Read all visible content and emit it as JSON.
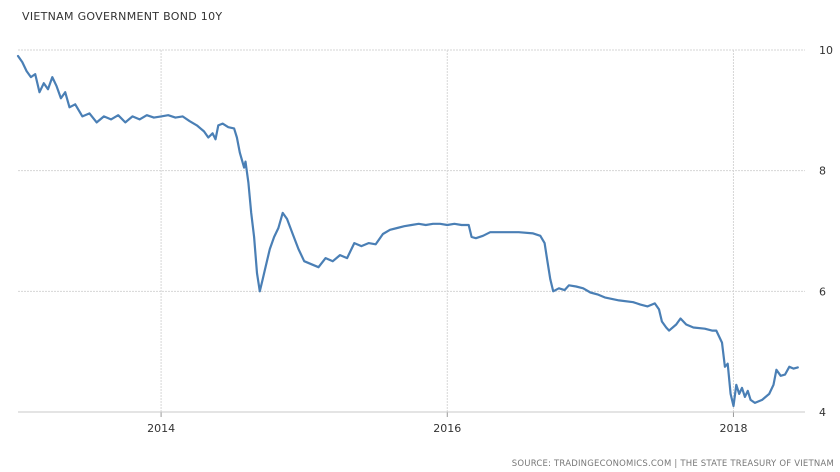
{
  "chart_data": {
    "type": "line",
    "title": "VIETNAM GOVERNMENT BOND 10Y",
    "source": "SOURCE: TRADINGECONOMICS.COM | THE STATE TREASURY OF VIETNAM",
    "xlabel": "",
    "ylabel": "",
    "xlim": [
      2013.0,
      2018.5
    ],
    "ylim": [
      4,
      10
    ],
    "x_ticks": [
      2014,
      2016,
      2018
    ],
    "y_ticks": [
      4,
      6,
      8,
      10
    ],
    "grid": true,
    "line_color": "#4a7fb5",
    "series": [
      {
        "points": [
          [
            2013.0,
            9.9
          ],
          [
            2013.03,
            9.8
          ],
          [
            2013.06,
            9.65
          ],
          [
            2013.09,
            9.55
          ],
          [
            2013.12,
            9.6
          ],
          [
            2013.15,
            9.3
          ],
          [
            2013.18,
            9.45
          ],
          [
            2013.21,
            9.35
          ],
          [
            2013.24,
            9.55
          ],
          [
            2013.27,
            9.4
          ],
          [
            2013.3,
            9.2
          ],
          [
            2013.33,
            9.3
          ],
          [
            2013.36,
            9.05
          ],
          [
            2013.4,
            9.1
          ],
          [
            2013.45,
            8.9
          ],
          [
            2013.5,
            8.95
          ],
          [
            2013.55,
            8.8
          ],
          [
            2013.6,
            8.9
          ],
          [
            2013.65,
            8.85
          ],
          [
            2013.7,
            8.92
          ],
          [
            2013.75,
            8.8
          ],
          [
            2013.8,
            8.9
          ],
          [
            2013.85,
            8.85
          ],
          [
            2013.9,
            8.92
          ],
          [
            2013.95,
            8.88
          ],
          [
            2014.0,
            8.9
          ],
          [
            2014.05,
            8.92
          ],
          [
            2014.1,
            8.88
          ],
          [
            2014.15,
            8.9
          ],
          [
            2014.2,
            8.82
          ],
          [
            2014.25,
            8.75
          ],
          [
            2014.3,
            8.65
          ],
          [
            2014.33,
            8.55
          ],
          [
            2014.36,
            8.62
          ],
          [
            2014.38,
            8.52
          ],
          [
            2014.4,
            8.75
          ],
          [
            2014.43,
            8.78
          ],
          [
            2014.47,
            8.72
          ],
          [
            2014.51,
            8.7
          ],
          [
            2014.53,
            8.55
          ],
          [
            2014.55,
            8.3
          ],
          [
            2014.58,
            8.05
          ],
          [
            2014.59,
            8.15
          ],
          [
            2014.61,
            7.8
          ],
          [
            2014.63,
            7.3
          ],
          [
            2014.65,
            6.9
          ],
          [
            2014.67,
            6.3
          ],
          [
            2014.69,
            6.0
          ],
          [
            2014.71,
            6.2
          ],
          [
            2014.73,
            6.4
          ],
          [
            2014.76,
            6.7
          ],
          [
            2014.79,
            6.9
          ],
          [
            2014.82,
            7.05
          ],
          [
            2014.85,
            7.3
          ],
          [
            2014.88,
            7.2
          ],
          [
            2014.92,
            6.95
          ],
          [
            2014.96,
            6.7
          ],
          [
            2015.0,
            6.5
          ],
          [
            2015.05,
            6.45
          ],
          [
            2015.1,
            6.4
          ],
          [
            2015.15,
            6.55
          ],
          [
            2015.2,
            6.5
          ],
          [
            2015.25,
            6.6
          ],
          [
            2015.3,
            6.55
          ],
          [
            2015.35,
            6.8
          ],
          [
            2015.4,
            6.75
          ],
          [
            2015.45,
            6.8
          ],
          [
            2015.5,
            6.78
          ],
          [
            2015.55,
            6.95
          ],
          [
            2015.6,
            7.02
          ],
          [
            2015.65,
            7.05
          ],
          [
            2015.7,
            7.08
          ],
          [
            2015.75,
            7.1
          ],
          [
            2015.8,
            7.12
          ],
          [
            2015.85,
            7.1
          ],
          [
            2015.9,
            7.12
          ],
          [
            2015.95,
            7.12
          ],
          [
            2016.0,
            7.1
          ],
          [
            2016.05,
            7.12
          ],
          [
            2016.1,
            7.1
          ],
          [
            2016.15,
            7.1
          ],
          [
            2016.17,
            6.9
          ],
          [
            2016.2,
            6.88
          ],
          [
            2016.25,
            6.92
          ],
          [
            2016.3,
            6.98
          ],
          [
            2016.4,
            6.98
          ],
          [
            2016.5,
            6.98
          ],
          [
            2016.6,
            6.96
          ],
          [
            2016.65,
            6.92
          ],
          [
            2016.68,
            6.8
          ],
          [
            2016.7,
            6.5
          ],
          [
            2016.72,
            6.2
          ],
          [
            2016.74,
            6.0
          ],
          [
            2016.78,
            6.05
          ],
          [
            2016.82,
            6.02
          ],
          [
            2016.85,
            6.1
          ],
          [
            2016.9,
            6.08
          ],
          [
            2016.95,
            6.05
          ],
          [
            2017.0,
            5.98
          ],
          [
            2017.05,
            5.95
          ],
          [
            2017.1,
            5.9
          ],
          [
            2017.2,
            5.85
          ],
          [
            2017.3,
            5.82
          ],
          [
            2017.35,
            5.78
          ],
          [
            2017.4,
            5.75
          ],
          [
            2017.45,
            5.8
          ],
          [
            2017.48,
            5.7
          ],
          [
            2017.5,
            5.5
          ],
          [
            2017.53,
            5.4
          ],
          [
            2017.55,
            5.35
          ],
          [
            2017.6,
            5.45
          ],
          [
            2017.63,
            5.55
          ],
          [
            2017.67,
            5.45
          ],
          [
            2017.72,
            5.4
          ],
          [
            2017.8,
            5.38
          ],
          [
            2017.85,
            5.35
          ],
          [
            2017.88,
            5.35
          ],
          [
            2017.92,
            5.15
          ],
          [
            2017.94,
            4.75
          ],
          [
            2017.96,
            4.8
          ],
          [
            2017.98,
            4.3
          ],
          [
            2018.0,
            4.1
          ],
          [
            2018.02,
            4.45
          ],
          [
            2018.04,
            4.3
          ],
          [
            2018.06,
            4.4
          ],
          [
            2018.08,
            4.25
          ],
          [
            2018.1,
            4.35
          ],
          [
            2018.12,
            4.2
          ],
          [
            2018.15,
            4.15
          ],
          [
            2018.2,
            4.2
          ],
          [
            2018.25,
            4.3
          ],
          [
            2018.28,
            4.45
          ],
          [
            2018.3,
            4.7
          ],
          [
            2018.33,
            4.6
          ],
          [
            2018.36,
            4.62
          ],
          [
            2018.39,
            4.75
          ],
          [
            2018.42,
            4.72
          ],
          [
            2018.45,
            4.74
          ]
        ]
      }
    ]
  }
}
